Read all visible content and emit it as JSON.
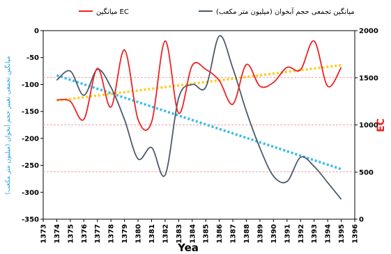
{
  "chart_data": {
    "type": "line",
    "xlabel": "Yea",
    "ylabel_left": "میانگین تجمعی تغییر حجم آبخوان (میلیون متر مکعب)",
    "ylabel_right": "EC",
    "x_range": [
      1373,
      1396
    ],
    "x_ticks": [
      1373,
      1374,
      1375,
      1376,
      1377,
      1378,
      1379,
      1380,
      1381,
      1382,
      1383,
      1384,
      1385,
      1386,
      1387,
      1388,
      1389,
      1390,
      1391,
      1392,
      1393,
      1394,
      1395,
      1396
    ],
    "y_left_range": [
      -350,
      0
    ],
    "y_left_ticks": [
      0,
      -50,
      -100,
      -150,
      -200,
      -250,
      -300,
      -350
    ],
    "y_right_range": [
      0,
      2000
    ],
    "y_right_ticks": [
      2000,
      1500,
      1000,
      500,
      0
    ],
    "grid": "off",
    "legend_position": "top",
    "series": [
      {
        "name": "میانگین تجمعی حجم آبخوان (میلیون متر مکعب)",
        "axis": "left",
        "color": "#4a5a6a",
        "x": [
          1374,
          1375,
          1376,
          1377,
          1378,
          1379,
          1380,
          1381,
          1382,
          1383,
          1384,
          1385,
          1386,
          1387,
          1388,
          1389,
          1390,
          1391,
          1392,
          1393,
          1394,
          1395
        ],
        "y": [
          -92,
          -75,
          -120,
          -72,
          -105,
          -165,
          -238,
          -217,
          -268,
          -125,
          -100,
          -105,
          -10,
          -70,
          -150,
          -218,
          -270,
          -280,
          -235,
          -252,
          -282,
          -313
        ]
      },
      {
        "name": "میانگین EC",
        "axis": "right",
        "color": "#ee2222",
        "x": [
          1374,
          1375,
          1376,
          1377,
          1378,
          1379,
          1380,
          1381,
          1382,
          1383,
          1384,
          1385,
          1386,
          1387,
          1388,
          1389,
          1390,
          1391,
          1392,
          1393,
          1394,
          1395
        ],
        "y": [
          1265,
          1250,
          1060,
          1600,
          1190,
          1795,
          1060,
          1030,
          1890,
          1125,
          1630,
          1590,
          1470,
          1220,
          1640,
          1410,
          1450,
          1610,
          1585,
          1890,
          1410,
          1610
        ]
      }
    ],
    "trendlines": [
      {
        "axis": "left",
        "color": "#33bbee",
        "x": [
          1374,
          1395
        ],
        "y": [
          -83,
          -257
        ]
      },
      {
        "axis": "left",
        "color": "#ffcc22",
        "x": [
          1374,
          1395
        ],
        "y": [
          -130,
          -64
        ]
      }
    ],
    "reference_lines": [
      {
        "axis": "left",
        "y": -87,
        "color": "#f2a0a0"
      },
      {
        "axis": "left",
        "y": -175,
        "color": "#f2a0a0"
      },
      {
        "axis": "left",
        "y": -262,
        "color": "#f2a0a0"
      }
    ]
  }
}
